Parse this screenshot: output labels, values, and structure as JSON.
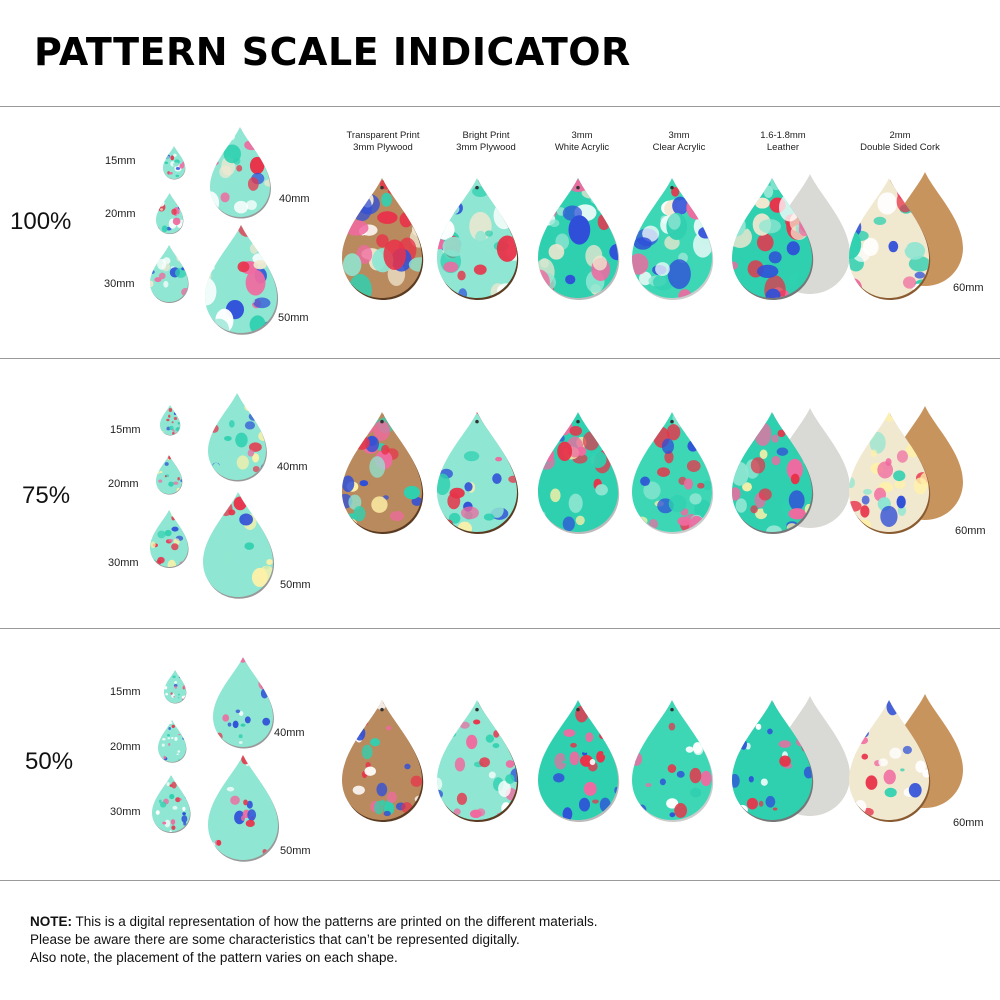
{
  "title": "PATTERN SCALE INDICATOR",
  "materials": [
    {
      "line1": "Transparent Print",
      "line2": "3mm Plywood"
    },
    {
      "line1": "Bright Print",
      "line2": "3mm Plywood"
    },
    {
      "line1": "3mm",
      "line2": "White Acrylic"
    },
    {
      "line1": "3mm",
      "line2": "Clear Acrylic"
    },
    {
      "line1": "1.6-1.8mm",
      "line2": "Leather"
    },
    {
      "line1": "2mm",
      "line2": "Double Sided Cork"
    }
  ],
  "sizes": [
    "15mm",
    "20mm",
    "30mm",
    "40mm",
    "50mm",
    "60mm"
  ],
  "scales": [
    "100%",
    "75%",
    "50%"
  ],
  "note": {
    "label": "NOTE:",
    "line1": "This is a digital representation of how the patterns are printed on the different materials.",
    "line2": "Please be aware there are some characteristics that can’t be represented digitally.",
    "line3": "Also note, the placement of the pattern varies on each shape."
  },
  "colors": {
    "mint": "#8fe6d2",
    "teal": "#2fd0b0",
    "red": "#e8334a",
    "blue": "#2f4fd8",
    "pink": "#f06aa0",
    "wood": "#b98a5e",
    "cork": "#c8945e",
    "suede": "#d9d9d5",
    "cream": "#f1e8d0"
  }
}
